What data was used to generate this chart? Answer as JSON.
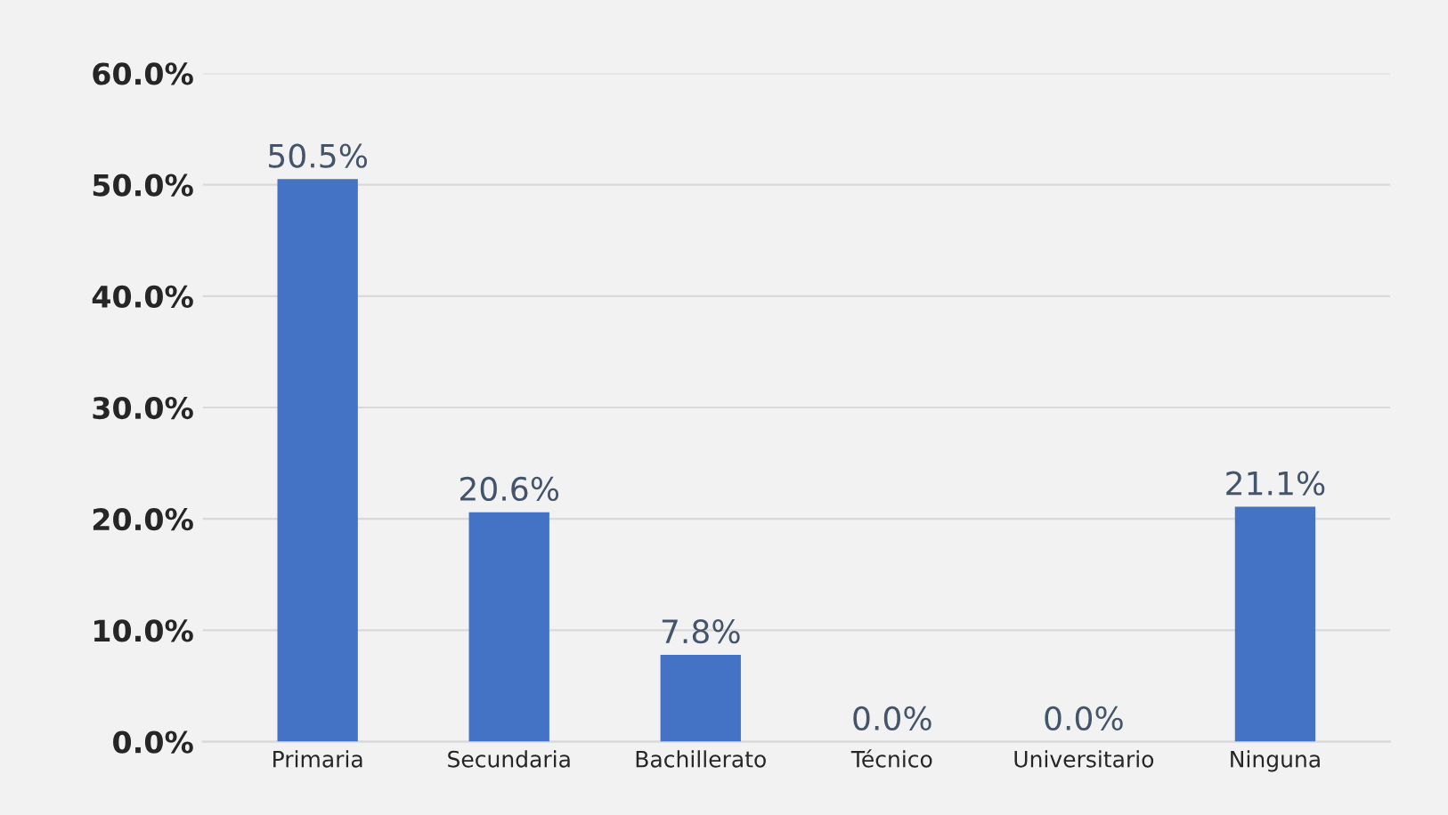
{
  "chart_data": {
    "type": "bar",
    "categories": [
      "Primaria",
      "Secundaria",
      "Bachillerato",
      "Técnico",
      "Universitario",
      "Ninguna"
    ],
    "values": [
      50.5,
      20.6,
      7.8,
      0.0,
      0.0,
      21.1
    ],
    "value_labels": [
      "50.5%",
      "20.6%",
      "7.8%",
      "0.0%",
      "0.0%",
      "21.1%"
    ],
    "color": "#4472c4",
    "ylim": [
      0,
      60
    ],
    "yticks": [
      {
        "value": 0,
        "label": "0.0%"
      },
      {
        "value": 10,
        "label": "10.0%"
      },
      {
        "value": 20,
        "label": "20.0%"
      },
      {
        "value": 30,
        "label": "30.0%"
      },
      {
        "value": 40,
        "label": "40.0%"
      },
      {
        "value": 50,
        "label": "50.0%"
      },
      {
        "value": 60,
        "label": "60.0%"
      }
    ],
    "grid": "y"
  }
}
